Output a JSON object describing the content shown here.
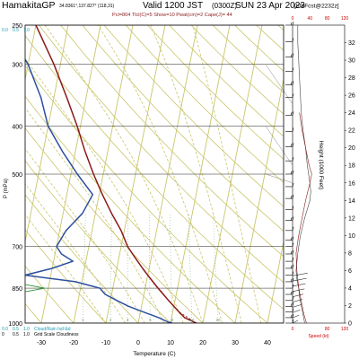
{
  "header": {
    "station": "HamakitaGP",
    "coords": "34.8361°,137.827° (118,31)",
    "valid": "Valid 1200 JST",
    "valid_utc": "(0300Z)",
    "date": "SUN 23 Apr 2023",
    "model": "[t/hrFcst@2232z]",
    "indices": "Pcl=804 Tlcl(C)=5 Show=10 Pwat(cm)=2 Cape(J)= 44"
  },
  "colors": {
    "temperature": "#8b1a1a",
    "dewpoint": "#2d4f9e",
    "parcel": "#8b1a1a",
    "isotherm": "#c9c56a",
    "dry_adiabat": "#c9c56a",
    "moist_adiabat": "#c9c56a",
    "mixing_ratio": "#8fbf8f",
    "isobar": "#000000",
    "accent_cyan": "#1e9bb0",
    "red_axis": "#cc0000"
  },
  "chart_data": [
    {
      "type": "line",
      "title": "",
      "xlabel": "Temperature (C)",
      "ylabel": "P (mPa)",
      "x_ticks": [
        "-30",
        "-20",
        "-10",
        "0",
        "10",
        "20",
        "30",
        "40"
      ],
      "y_ticks": [
        "250",
        "300",
        "400",
        "500",
        "700",
        "850",
        "1000"
      ],
      "xlim": [
        -35,
        45
      ],
      "ylim": [
        1000,
        250
      ],
      "y_scale": "log",
      "grid": true,
      "cloud_scale": {
        "top_labels": [
          "0.0",
          "0.5",
          "1.0"
        ],
        "bottom_row1": [
          "0.0",
          "0.5",
          "1.0"
        ],
        "bottom_row1_label": "Cloud/Rain hsF&d",
        "bottom_row2": [
          "0",
          "0.5",
          "1.0"
        ],
        "bottom_row2_label": "Grid Scale Cloudiness"
      },
      "series": [
        {
          "name": "",
          "kind": "temperature",
          "points": [
            [
              18,
              1000
            ],
            [
              14,
              975
            ],
            [
              12,
              950
            ],
            [
              10,
              925
            ],
            [
              8,
              900
            ],
            [
              6,
              875
            ],
            [
              4,
              850
            ],
            [
              2,
              825
            ],
            [
              0,
              800
            ],
            [
              -2,
              775
            ],
            [
              -4,
              750
            ],
            [
              -6,
              725
            ],
            [
              -8,
              700
            ],
            [
              -11,
              650
            ],
            [
              -15,
              600
            ],
            [
              -19,
              550
            ],
            [
              -23,
              500
            ],
            [
              -27,
              450
            ],
            [
              -31,
              400
            ],
            [
              -36,
              350
            ],
            [
              -42,
              300
            ],
            [
              -50,
              250
            ]
          ]
        },
        {
          "name": "",
          "kind": "dewpoint",
          "points": [
            [
              10,
              1000
            ],
            [
              6,
              975
            ],
            [
              1,
              950
            ],
            [
              -4,
              925
            ],
            [
              -8,
              900
            ],
            [
              -12,
              875
            ],
            [
              -14,
              850
            ],
            [
              -22,
              825
            ],
            [
              -38,
              800
            ],
            [
              -30,
              775
            ],
            [
              -24,
              750
            ],
            [
              -28,
              725
            ],
            [
              -30,
              700
            ],
            [
              -28,
              650
            ],
            [
              -24,
              600
            ],
            [
              -22,
              550
            ],
            [
              -28,
              500
            ],
            [
              -34,
              450
            ],
            [
              -40,
              400
            ],
            [
              -44,
              350
            ],
            [
              -50,
              300
            ],
            [
              -60,
              250
            ]
          ]
        },
        {
          "name": "",
          "kind": "parcel",
          "points": [
            [
              18,
              1000
            ],
            [
              15,
              975
            ],
            [
              12,
              950
            ],
            [
              8,
              900
            ],
            [
              5,
              860
            ],
            [
              3,
              840
            ],
            [
              0,
              800
            ],
            [
              -4,
              750
            ],
            [
              -8,
              700
            ]
          ]
        }
      ],
      "mixing_ratio_labels": [
        "1",
        "2",
        "3",
        "5",
        "8",
        "12",
        "20"
      ],
      "dry_adiabat_thetas": [
        -30,
        -20,
        -10,
        0,
        10,
        20,
        30,
        40,
        50,
        60,
        70,
        80,
        90,
        100,
        110,
        120,
        130,
        140,
        150,
        160,
        170,
        180,
        190
      ],
      "moist_adiabat_temps": [
        -10,
        -4,
        2,
        8,
        14,
        20,
        26,
        32,
        38
      ],
      "wind_pressures": [
        250,
        270,
        290,
        310,
        330,
        350,
        380,
        410,
        440,
        470,
        500,
        530,
        560,
        590,
        620,
        650,
        680,
        700,
        725,
        750,
        775,
        800,
        825,
        850,
        875,
        900,
        925,
        950,
        975,
        1000
      ]
    },
    {
      "type": "line",
      "title": "",
      "ylabel": "Height (1000 Feet)",
      "xlabel": "Speed (kt)",
      "x_ticks_top": [
        "0",
        "40",
        "80",
        "120"
      ],
      "x_ticks_bottom": [
        "0",
        "80",
        "120"
      ],
      "height_ticks": [
        "0",
        "2",
        "4",
        "6",
        "8",
        "10",
        "12",
        "14",
        "16",
        "18",
        "20",
        "22",
        "24",
        "26",
        "28",
        "30",
        "32"
      ],
      "xlim": [
        0,
        120
      ],
      "ylim": [
        0,
        34
      ],
      "series": [
        {
          "name": "",
          "kind": "speed",
          "points": [
            [
              28,
              0
            ],
            [
              24,
              1
            ],
            [
              20,
              2
            ],
            [
              16,
              3
            ],
            [
              14,
              4
            ],
            [
              10,
              5
            ],
            [
              8,
              6
            ],
            [
              12,
              8
            ],
            [
              18,
              10
            ],
            [
              28,
              12
            ],
            [
              40,
              14
            ],
            [
              42,
              15
            ],
            [
              40,
              16
            ],
            [
              34,
              18
            ],
            [
              30,
              20
            ],
            [
              24,
              22
            ],
            [
              20,
              24
            ],
            [
              18,
              26
            ],
            [
              16,
              28
            ],
            [
              14,
              30
            ],
            [
              12,
              32
            ],
            [
              12,
              34
            ]
          ]
        },
        {
          "name": "",
          "kind": "speed2",
          "points": [
            [
              32,
              0
            ],
            [
              26,
              1
            ],
            [
              22,
              2
            ],
            [
              18,
              3
            ],
            [
              14,
              4
            ],
            [
              12,
              5
            ],
            [
              10,
              6
            ],
            [
              8,
              8
            ],
            [
              14,
              10
            ],
            [
              22,
              12
            ],
            [
              30,
              14
            ],
            [
              40,
              16
            ],
            [
              44,
              17
            ],
            [
              38,
              18
            ],
            [
              30,
              20
            ],
            [
              22,
              22
            ],
            [
              16,
              24
            ]
          ]
        }
      ]
    }
  ]
}
